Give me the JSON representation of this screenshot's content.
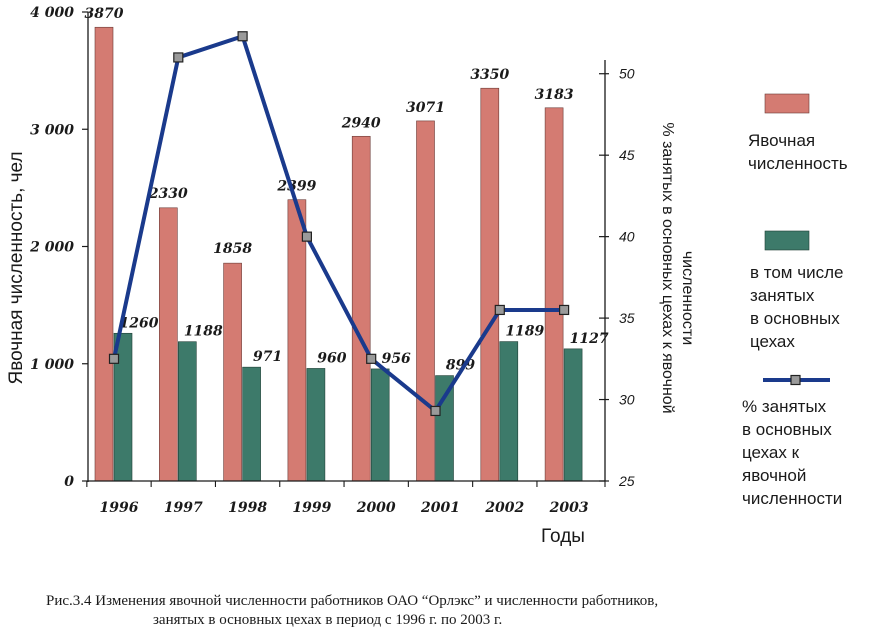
{
  "chart_data": {
    "type": "bar",
    "categories": [
      "1996",
      "1997",
      "1998",
      "1999",
      "2000",
      "2001",
      "2002",
      "2003"
    ],
    "series": [
      {
        "name": "Явочная численность",
        "kind": "bar",
        "axis": "left",
        "color": "#d47b72",
        "values": [
          3870,
          2330,
          1858,
          2399,
          2940,
          3071,
          3350,
          3183
        ],
        "labels": [
          "3870",
          "2330",
          "1858",
          "2399",
          "2940",
          "3071",
          "3350",
          "3183"
        ]
      },
      {
        "name": "в том числе занятых в основных цехах",
        "kind": "bar",
        "axis": "left",
        "color": "#3d7a6a",
        "values": [
          1260,
          1188,
          971,
          960,
          956,
          899,
          1189,
          1127
        ],
        "labels": [
          "1260",
          "1188",
          "971",
          "960",
          "956",
          "899",
          "1189",
          "1127"
        ]
      },
      {
        "name": "% занятых в основных цехах к явочной численности",
        "kind": "line",
        "axis": "right",
        "color": "#1a3a8c",
        "values": [
          32.5,
          51.0,
          52.3,
          40.0,
          32.5,
          29.3,
          35.5,
          35.5
        ]
      }
    ],
    "left_axis": {
      "title": "Явочная численность, чел",
      "ylim": [
        0,
        4000
      ],
      "ticks": [
        0,
        1000,
        2000,
        3000,
        4000
      ],
      "tick_labels": [
        "0",
        "1 000",
        "2 000",
        "3 000",
        "4 000"
      ]
    },
    "right_axis": {
      "title_lines": [
        "% занятых в основных цехах к явочной",
        "численности"
      ],
      "ylim": [
        25,
        52.5
      ],
      "ticks": [
        25,
        30,
        35,
        40,
        45,
        50
      ],
      "tick_labels": [
        "25",
        "30",
        "35",
        "40",
        "45",
        "50"
      ]
    },
    "xlabel": "Годы",
    "grid": false,
    "legend_position": "right",
    "legend": [
      {
        "lines": [
          "Явочная",
          "численность"
        ]
      },
      {
        "lines": [
          "в том числе",
          "занятых",
          "в основных",
          "цехах"
        ]
      },
      {
        "lines": [
          "% занятых",
          "в основных",
          "цехах к",
          "явочной",
          "численности"
        ]
      }
    ]
  },
  "caption": {
    "line1": "Рис.3.4 Изменения явочной численности работников ОАО “Орлэкс” и численности работников,",
    "line2": "занятых в основных цехах в период с 1996 г. по 2003 г."
  }
}
